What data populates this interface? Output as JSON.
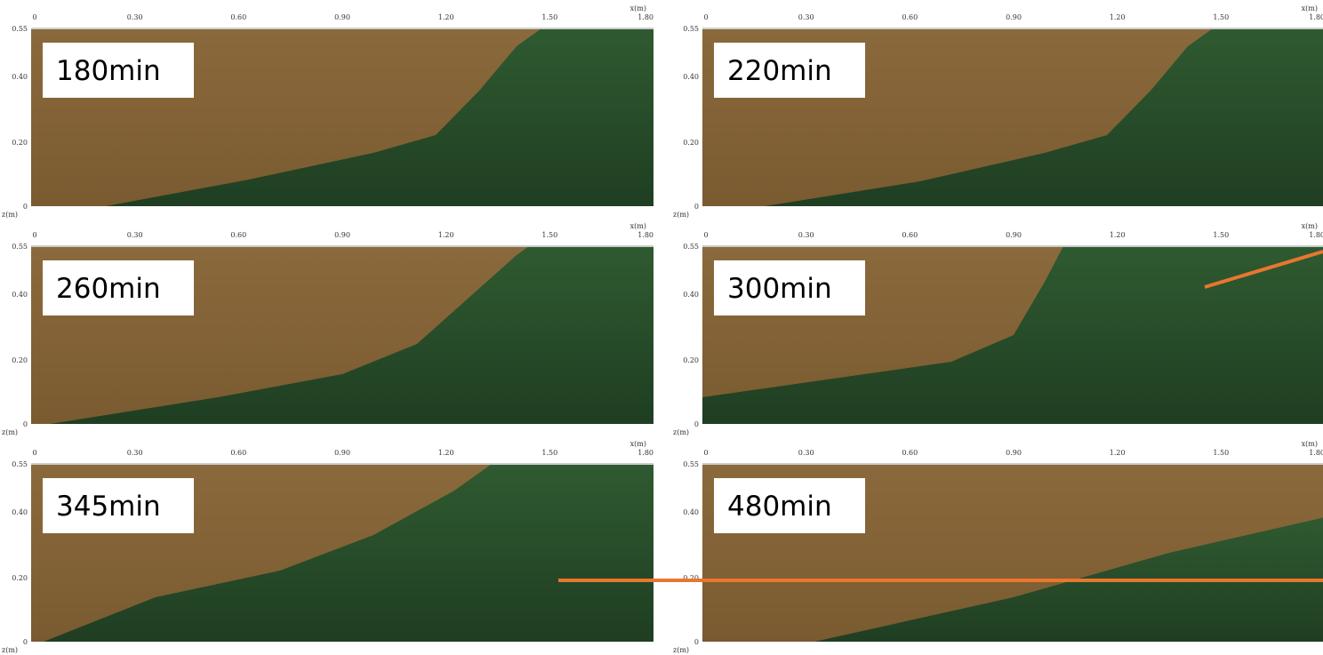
{
  "panels": [
    {
      "label": "180min"
    },
    {
      "label": "220min"
    },
    {
      "label": "260min"
    },
    {
      "label": "300min"
    },
    {
      "label": "345min"
    },
    {
      "label": "480min"
    }
  ],
  "x_ticks": [
    "0",
    "0.30",
    "0.60",
    "0.90",
    "1.20",
    "1.50",
    "1.80"
  ],
  "z_ticks": [
    "0.55",
    "0.40",
    "0.20",
    "0"
  ],
  "x_axis_label": "x(m)",
  "z_axis_label": "z(m)"
}
